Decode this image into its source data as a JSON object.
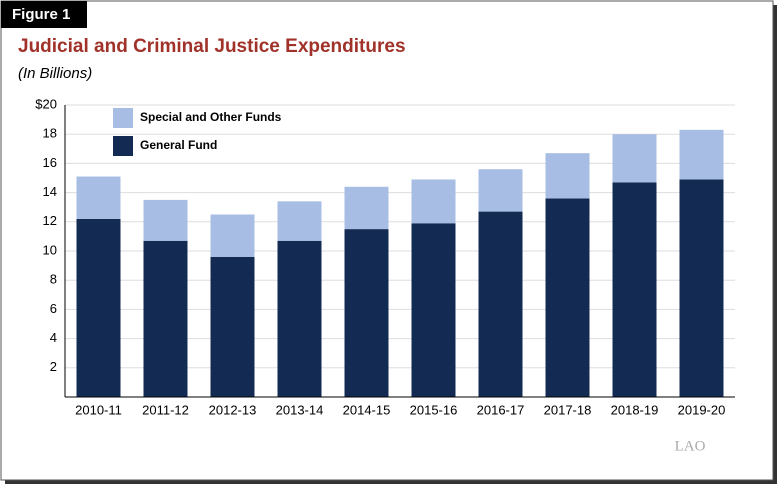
{
  "chart_data": {
    "type": "stacked_bar",
    "figure_label": "Figure 1",
    "title": "Judicial and Criminal Justice Expenditures",
    "subtitle": "(In Billions)",
    "logo": "LAO",
    "categories": [
      "2010-11",
      "2011-12",
      "2012-13",
      "2013-14",
      "2014-15",
      "2015-16",
      "2016-17",
      "2017-18",
      "2018-19",
      "2019-20"
    ],
    "series": [
      {
        "name": "General Fund",
        "color": "#132b52",
        "values": [
          12.2,
          10.7,
          9.6,
          10.7,
          11.5,
          11.9,
          12.7,
          13.6,
          14.7,
          14.9
        ]
      },
      {
        "name": "Special and Other Funds",
        "color": "#a7bde3",
        "values": [
          2.9,
          2.8,
          2.9,
          2.7,
          2.9,
          3.0,
          2.9,
          3.1,
          3.3,
          3.4
        ]
      }
    ],
    "ylim": [
      0,
      20
    ],
    "yticks": [
      2,
      4,
      6,
      8,
      10,
      12,
      14,
      16,
      18,
      {
        "value": 20,
        "label": "$20"
      }
    ],
    "grid": true,
    "legend": "top-left"
  }
}
